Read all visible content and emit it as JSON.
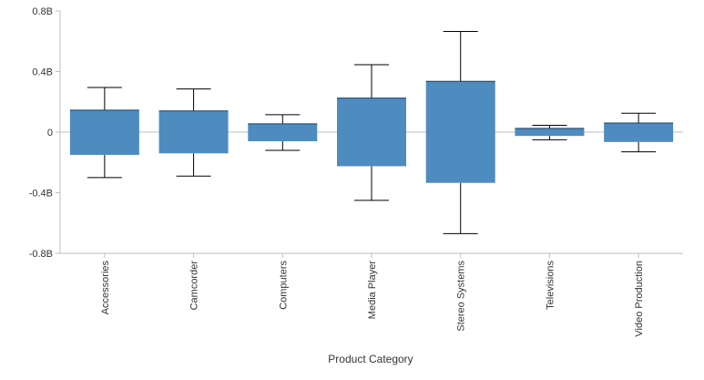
{
  "chart_data": {
    "type": "box",
    "title": "",
    "xlabel": "Product Category",
    "ylabel": "",
    "ylim": [
      -800000000,
      800000000
    ],
    "yticks": [
      {
        "value": 800000000,
        "label": "0.8B"
      },
      {
        "value": 400000000,
        "label": "0.4B"
      },
      {
        "value": 0,
        "label": "0"
      },
      {
        "value": -400000000,
        "label": "-0.4B"
      },
      {
        "value": -800000000,
        "label": "-0.8B"
      }
    ],
    "categories": [
      "Accessories",
      "Camcorder",
      "Computers",
      "Media Player",
      "Stereo Systems",
      "Televisions",
      "Video Production"
    ],
    "boxes": [
      {
        "category": "Accessories",
        "whisker_low": -300000000,
        "q1": -150000000,
        "q3": 145000000,
        "whisker_high": 295000000
      },
      {
        "category": "Camcorder",
        "whisker_low": -290000000,
        "q1": -140000000,
        "q3": 140000000,
        "whisker_high": 285000000
      },
      {
        "category": "Computers",
        "whisker_low": -120000000,
        "q1": -60000000,
        "q3": 55000000,
        "whisker_high": 115000000
      },
      {
        "category": "Media Player",
        "whisker_low": -450000000,
        "q1": -225000000,
        "q3": 225000000,
        "whisker_high": 445000000
      },
      {
        "category": "Stereo Systems",
        "whisker_low": -670000000,
        "q1": -335000000,
        "q3": 335000000,
        "whisker_high": 665000000
      },
      {
        "category": "Televisions",
        "whisker_low": -50000000,
        "q1": -25000000,
        "q3": 25000000,
        "whisker_high": 45000000
      },
      {
        "category": "Video Production",
        "whisker_low": -130000000,
        "q1": -65000000,
        "q3": 60000000,
        "whisker_high": 125000000
      }
    ],
    "grid": false,
    "legend": "none",
    "colors": {
      "box": "#4e8bbf",
      "whisker": "#000000",
      "axis": "#bfbfbf",
      "zero_line": "#bfbfbf"
    }
  }
}
